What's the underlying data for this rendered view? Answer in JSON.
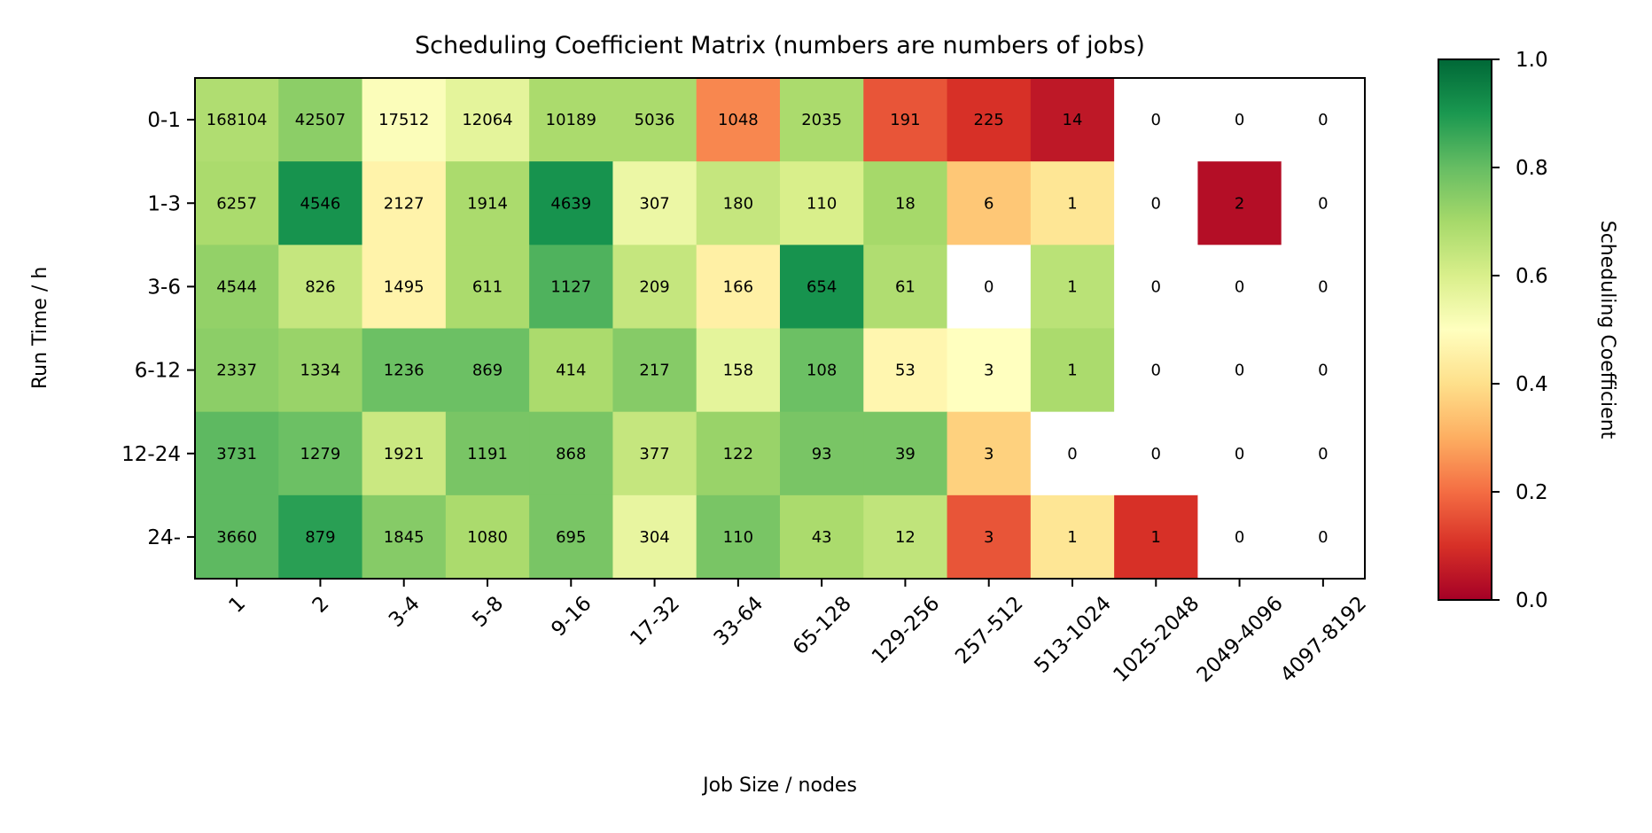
{
  "chart_data": {
    "type": "heatmap",
    "title": "Scheduling Coefficient Matrix (numbers are numbers of jobs)",
    "xlabel": "Job Size / nodes",
    "ylabel": "Run Time / h",
    "x_categories": [
      "1",
      "2",
      "3-4",
      "5-8",
      "9-16",
      "17-32",
      "33-64",
      "65-128",
      "129-256",
      "257-512",
      "513-1024",
      "1025-2048",
      "2049-4096",
      "4097-8192"
    ],
    "y_categories": [
      "0-1",
      "1-3",
      "3-6",
      "6-12",
      "12-24",
      "24-"
    ],
    "counts": [
      [
        168104,
        42507,
        17512,
        12064,
        10189,
        5036,
        1048,
        2035,
        191,
        225,
        14,
        0,
        0,
        0
      ],
      [
        6257,
        4546,
        2127,
        1914,
        4639,
        307,
        180,
        110,
        18,
        6,
        1,
        0,
        2,
        0
      ],
      [
        4544,
        826,
        1495,
        611,
        1127,
        209,
        166,
        654,
        61,
        0,
        1,
        0,
        0,
        0
      ],
      [
        2337,
        1334,
        1236,
        869,
        414,
        217,
        158,
        108,
        53,
        3,
        1,
        0,
        0,
        0
      ],
      [
        3731,
        1279,
        1921,
        1191,
        868,
        377,
        122,
        93,
        39,
        3,
        0,
        0,
        0,
        0
      ],
      [
        3660,
        879,
        1845,
        1080,
        695,
        304,
        110,
        43,
        12,
        3,
        1,
        1,
        0,
        0
      ]
    ],
    "coefficients": [
      [
        0.68,
        0.74,
        0.51,
        0.57,
        0.69,
        0.69,
        0.24,
        0.69,
        0.16,
        0.1,
        0.05,
        null,
        null,
        null
      ],
      [
        0.69,
        0.91,
        0.46,
        0.69,
        0.91,
        0.55,
        0.64,
        0.6,
        0.7,
        0.35,
        0.42,
        null,
        0.03,
        null
      ],
      [
        0.73,
        0.64,
        0.46,
        0.69,
        0.83,
        0.64,
        0.45,
        0.91,
        0.68,
        null,
        0.66,
        null,
        null,
        null
      ],
      [
        0.74,
        0.72,
        0.79,
        0.79,
        0.69,
        0.75,
        0.57,
        0.79,
        0.47,
        0.5,
        0.69,
        null,
        null,
        null
      ],
      [
        0.81,
        0.79,
        0.63,
        0.77,
        0.77,
        0.64,
        0.72,
        0.77,
        0.77,
        0.37,
        null,
        null,
        null,
        null
      ],
      [
        0.81,
        0.88,
        0.75,
        0.69,
        0.77,
        0.56,
        0.77,
        0.69,
        0.65,
        0.16,
        0.42,
        0.1,
        null,
        null
      ]
    ],
    "colormap": "RdYlGn",
    "colorbar": {
      "label": "Scheduling Coefficient",
      "range": [
        0.0,
        1.0
      ],
      "ticks": [
        "0.0",
        "0.2",
        "0.4",
        "0.6",
        "0.8",
        "1.0"
      ]
    },
    "missing_color": "#ffffff"
  }
}
